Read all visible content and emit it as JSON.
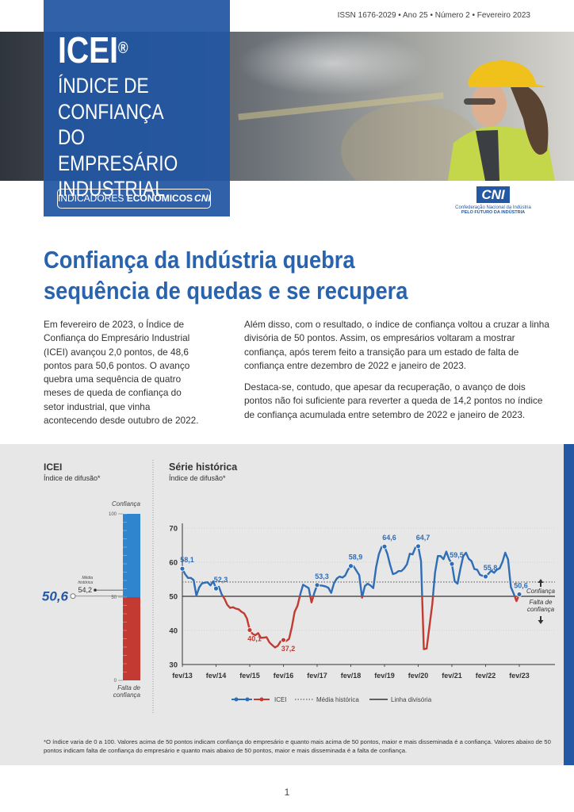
{
  "header": {
    "issn": "ISSN 1676-2029 • Ano 25 • Número 2 • Fevereiro 2023",
    "brand": "ICEI",
    "registered": "®",
    "brand_lines": [
      "ÍNDICE DE",
      "CONFIANÇA",
      "DO EMPRESÁRIO",
      "INDUSTRIAL"
    ],
    "badge": [
      "INDICADORES",
      "ECONÔMICOS",
      "CNI"
    ],
    "logo": {
      "mark": "CNI",
      "name": "Confederação Nacional da Indústria",
      "tagline": "PELO FUTURO DA INDÚSTRIA"
    }
  },
  "headline": [
    "Confiança da Indústria quebra",
    "sequência de quedas e se recupera"
  ],
  "body": {
    "left": [
      "Em fevereiro de 2023, o Índice de Confiança do Empresário Industrial (ICEI) avançou 2,0 pontos, de 48,6 pontos para 50,6 pontos. O avanço quebra uma sequência de quatro meses de queda de confiança do setor industrial, que vinha acontecendo desde outubro de 2022."
    ],
    "right": [
      "Além disso, com o resultado, o índice de confiança voltou a cruzar a linha divisória de 50 pontos. Assim, os empresários voltaram a mostrar confiança, após terem feito a transição para um estado de falta de confiança entre dezembro de 2022 e janeiro de 2023.",
      "Destaca-se, contudo, que apesar da recuperação, o avanço de dois pontos não foi suficiente para reverter a queda de 14,2 pontos no índice de confiança acumulada entre setembro de 2022 e janeiro de 2023."
    ]
  },
  "chart_data": [
    {
      "type": "gauge",
      "title": "ICEI",
      "subtitle": "Índice de difusão*",
      "ylim": [
        0,
        100
      ],
      "yticks": [
        0,
        50,
        100
      ],
      "divider": 50,
      "value": 50.6,
      "value_label": "50,6",
      "reference": {
        "name": [
          "Média",
          "histórica"
        ],
        "value": 54.2,
        "value_label": "54,2"
      },
      "top_label": "Confiança",
      "bottom_label": [
        "Falta de",
        "confiança"
      ],
      "colors": {
        "above": "#2f86cf",
        "below": "#c23a32"
      }
    },
    {
      "type": "line",
      "title": "Série histórica",
      "subtitle": "Índice de difusão*",
      "categories": [
        "fev/13",
        null,
        null,
        null,
        null,
        null,
        null,
        null,
        null,
        null,
        null,
        null,
        "fev/14",
        null,
        null,
        null,
        null,
        null,
        null,
        null,
        null,
        null,
        null,
        null,
        "fev/15",
        null,
        null,
        null,
        null,
        null,
        null,
        null,
        null,
        null,
        null,
        null,
        "fev/16",
        null,
        null,
        null,
        null,
        null,
        null,
        null,
        null,
        null,
        null,
        null,
        "fev/17",
        null,
        null,
        null,
        null,
        null,
        null,
        null,
        null,
        null,
        null,
        null,
        "fev/18",
        null,
        null,
        null,
        null,
        null,
        null,
        null,
        null,
        null,
        null,
        null,
        "fev/19",
        null,
        null,
        null,
        null,
        null,
        null,
        null,
        null,
        null,
        null,
        null,
        "fev/20",
        null,
        null,
        null,
        null,
        null,
        null,
        null,
        null,
        null,
        null,
        null,
        "fev/21",
        null,
        null,
        null,
        null,
        null,
        null,
        null,
        null,
        null,
        null,
        null,
        "fev/22",
        null,
        null,
        null,
        null,
        null,
        null,
        null,
        null,
        null,
        null,
        null,
        "fev/23"
      ],
      "ylim": [
        30,
        70
      ],
      "yticks": [
        30,
        40,
        50,
        60,
        70
      ],
      "grid": true,
      "series": [
        {
          "name": "ICEI",
          "colors": {
            "above": "#2f6db5",
            "below": "#c23a32"
          },
          "values": [
            58.1,
            56.5,
            55.4,
            55.4,
            54.8,
            50.2,
            52.6,
            53.8,
            54.0,
            54.1,
            53.2,
            54.4,
            52.3,
            52.8,
            50.6,
            49.3,
            47.5,
            46.6,
            46.8,
            46.4,
            46.2,
            45.5,
            45.0,
            43.5,
            40.1,
            39.0,
            38.6,
            39.2,
            37.8,
            37.9,
            38.0,
            36.5,
            35.7,
            35.0,
            35.5,
            36.8,
            37.2,
            36.9,
            37.5,
            41.0,
            45.5,
            47.2,
            50.6,
            53.4,
            52.9,
            52.4,
            48.2,
            51.0,
            53.3,
            53.2,
            53.1,
            52.9,
            52.5,
            51.0,
            53.8,
            55.2,
            55.8,
            55.5,
            56.1,
            57.8,
            58.9,
            58.8,
            57.5,
            56.2,
            49.6,
            53.0,
            53.7,
            53.2,
            52.4,
            58.5,
            62.4,
            64.5,
            64.6,
            62.5,
            59.2,
            56.5,
            56.8,
            57.4,
            57.4,
            58.2,
            59.4,
            62.5,
            62.3,
            64.3,
            64.7,
            60.3,
            34.5,
            34.7,
            41.2,
            47.6,
            57.0,
            61.8,
            61.8,
            60.9,
            63.1,
            60.9,
            59.5,
            54.4,
            53.7,
            58.0,
            61.7,
            62.8,
            61.0,
            60.3,
            58.0,
            57.8,
            56.3,
            56.0,
            55.8,
            56.6,
            57.5,
            56.9,
            57.8,
            58.2,
            60.1,
            62.8,
            60.8,
            52.7,
            50.8,
            48.6,
            50.6
          ],
          "value_labels": [
            "58,1",
            null,
            null,
            null,
            null,
            null,
            null,
            null,
            null,
            null,
            null,
            null,
            "52,3",
            null,
            null,
            null,
            null,
            null,
            null,
            null,
            null,
            null,
            null,
            null,
            "40,1",
            null,
            null,
            null,
            null,
            null,
            null,
            null,
            null,
            null,
            null,
            null,
            "37,2",
            null,
            null,
            null,
            null,
            null,
            null,
            null,
            null,
            null,
            null,
            null,
            "53,3",
            null,
            null,
            null,
            null,
            null,
            null,
            null,
            null,
            null,
            null,
            null,
            "58,9",
            null,
            null,
            null,
            null,
            null,
            null,
            null,
            null,
            null,
            null,
            null,
            "64,6",
            null,
            null,
            null,
            null,
            null,
            null,
            null,
            null,
            null,
            null,
            null,
            "64,7",
            null,
            null,
            null,
            null,
            null,
            null,
            null,
            null,
            null,
            null,
            null,
            "59,5",
            null,
            null,
            null,
            null,
            null,
            null,
            null,
            null,
            null,
            null,
            null,
            "55,8",
            null,
            null,
            null,
            null,
            null,
            null,
            null,
            null,
            null,
            null,
            null,
            "50,6"
          ]
        }
      ],
      "reference_lines": [
        {
          "name": "Média histórica",
          "value": 54.2,
          "color": "#8a8a8a",
          "dash": "dotted"
        },
        {
          "name": "Linha divisória",
          "value": 50,
          "color": "#333333",
          "dash": "solid"
        }
      ],
      "annotations": {
        "above": "Confiança",
        "below": [
          "Falta de",
          "confiança"
        ]
      }
    }
  ],
  "footnote": "*O índice varia de 0 a 100. Valores acima de 50 pontos indicam confiança do empresário e quanto mais acima de 50 pontos, maior e mais disseminada é a confiança. Valores abaixo de 50 pontos indicam falta de confiança do empresário e quanto mais abaixo de 50 pontos, maior e mais disseminada é a falta de confiança.",
  "page_number": 1
}
